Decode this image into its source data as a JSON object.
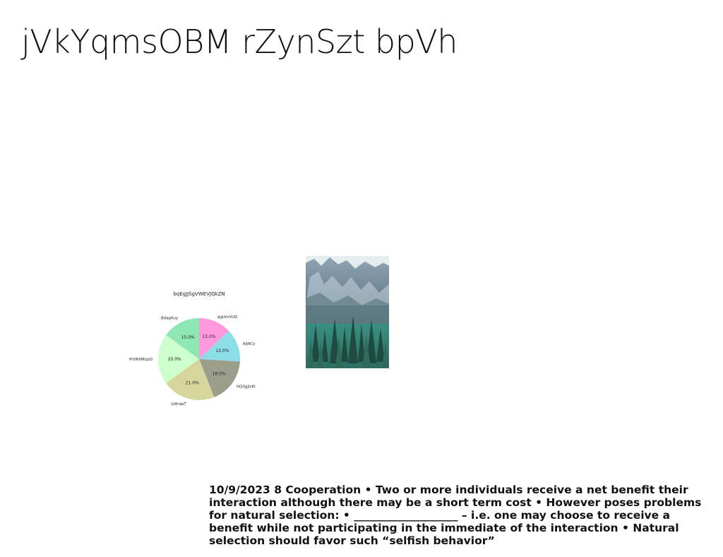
{
  "slide": {
    "title": "jVkYqmsOBM rZynSzt bpVh",
    "body": "10/9/2023 8 Cooperation • Two or more individuals receive a net benefit their interaction although there may be a short term cost • However poses problems for natural selection: • ___________________ – i.e. one may choose to receive a benefit while not participating in the immediate of the interaction • Natural selection should favor such “selfish behavior”"
  },
  "chart_data": {
    "type": "pie",
    "title": "bqEgJJSgVWEVJQkZN",
    "labels": [
      "qgUmVUQ",
      "AjWCy",
      "HQSgjIzKI",
      "LtArqaT",
      "PrVRXMcJzD",
      "BdapKuy"
    ],
    "values": [
      13.0,
      13.0,
      18.0,
      21.0,
      20.0,
      15.0
    ],
    "value_labels": [
      "13.0%",
      "13.0%",
      "18.0%",
      "21.0%",
      "20.0%",
      "15.0%"
    ],
    "colors": [
      "#ff99de",
      "#8ddde6",
      "#9c9e8c",
      "#d6d69c",
      "#ccffcc",
      "#8ee6b3"
    ],
    "start_angle": "top",
    "direction": "clockwise"
  },
  "image": {
    "description": "mountain-forest-photo"
  }
}
